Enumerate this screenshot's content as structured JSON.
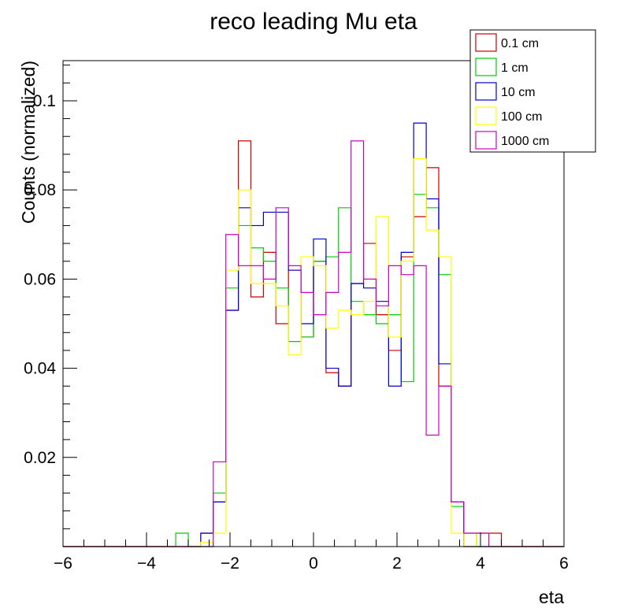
{
  "chart_data": {
    "type": "step",
    "title": "reco leading Mu eta",
    "xlabel": "eta",
    "ylabel": "Counts (normalized)",
    "xlim": [
      -6,
      6
    ],
    "ylim": [
      0,
      0.109
    ],
    "x_ticks": [
      -6,
      -4,
      -2,
      0,
      2,
      4,
      6
    ],
    "x_tick_labels": [
      "−6",
      "−4",
      "−2",
      "0",
      "2",
      "4",
      "6"
    ],
    "y_ticks": [
      0.02,
      0.04,
      0.06,
      0.08,
      0.1
    ],
    "y_tick_labels": [
      "0.02",
      "0.04",
      "0.06",
      "0.08",
      "0.1"
    ],
    "bin_width": 0.3,
    "bin_start": -6,
    "grid": false,
    "legend_position": "top-right",
    "series": [
      {
        "name": "0.1 cm",
        "color": "#cc0000",
        "values": [
          0,
          0,
          0,
          0,
          0,
          0,
          0,
          0,
          0,
          0,
          0,
          0.003,
          0.01,
          0.053,
          0.091,
          0.056,
          0.066,
          0.05,
          0.062,
          0.047,
          0.064,
          0.039,
          0.036,
          0.059,
          0.068,
          0.052,
          0.044,
          0.065,
          0.074,
          0.085,
          0.036,
          0.01,
          0,
          0.003,
          0.003,
          0,
          0,
          0,
          0,
          0
        ]
      },
      {
        "name": "1 cm",
        "color": "#00cc00",
        "values": [
          0,
          0,
          0,
          0,
          0,
          0,
          0,
          0,
          0,
          0.003,
          0,
          0,
          0.012,
          0.058,
          0.072,
          0.067,
          0.064,
          0.058,
          0.046,
          0.047,
          0.064,
          0.065,
          0.076,
          0.055,
          0.052,
          0.05,
          0.052,
          0.037,
          0.079,
          0.076,
          0.061,
          0.009,
          0.003,
          0,
          0,
          0,
          0,
          0,
          0,
          0
        ]
      },
      {
        "name": "10 cm",
        "color": "#0000cc",
        "values": [
          0,
          0,
          0,
          0,
          0,
          0,
          0,
          0,
          0,
          0,
          0,
          0.003,
          0.01,
          0.053,
          0.076,
          0.072,
          0.075,
          0.075,
          0.062,
          0.05,
          0.069,
          0.04,
          0.036,
          0.059,
          0.058,
          0.055,
          0.036,
          0.066,
          0.095,
          0.078,
          0.041,
          0.01,
          0,
          0,
          0,
          0,
          0,
          0,
          0,
          0
        ]
      },
      {
        "name": "100 cm",
        "color": "#ffff00",
        "values": [
          0,
          0,
          0,
          0,
          0,
          0,
          0,
          0,
          0,
          0,
          0,
          0.001,
          0.003,
          0.062,
          0.08,
          0.059,
          0.059,
          0.054,
          0.043,
          0.065,
          0.063,
          0.049,
          0.053,
          0.052,
          0.055,
          0.074,
          0.047,
          0.064,
          0.087,
          0.071,
          0.065,
          0.003,
          0,
          0.003,
          0,
          0,
          0,
          0,
          0,
          0
        ]
      },
      {
        "name": "1000 cm",
        "color": "#cc00cc",
        "values": [
          0,
          0,
          0,
          0,
          0,
          0,
          0,
          0,
          0,
          0,
          0,
          0,
          0.019,
          0.07,
          0.063,
          0.063,
          0.06,
          0.076,
          0.063,
          0.057,
          0.052,
          0.057,
          0.066,
          0.091,
          0.06,
          0.054,
          0.063,
          0.061,
          0.063,
          0.025,
          0.036,
          0.01,
          0.003,
          0.003,
          0,
          0,
          0,
          0,
          0,
          0
        ]
      }
    ]
  }
}
